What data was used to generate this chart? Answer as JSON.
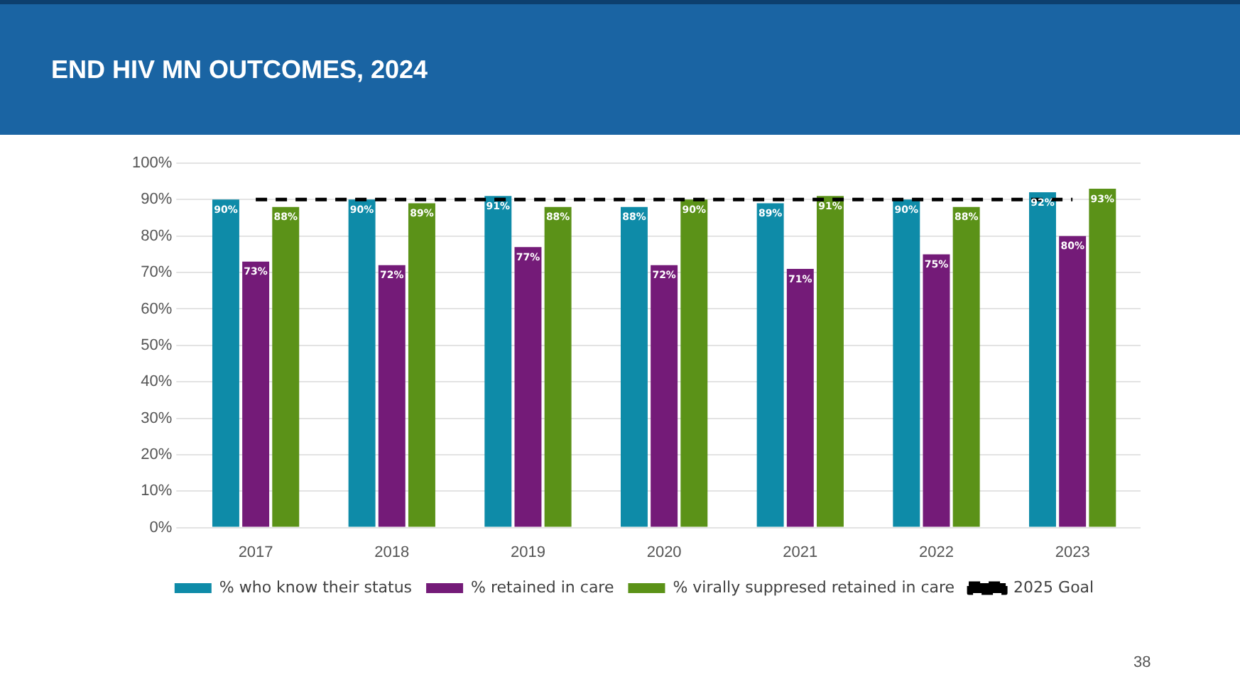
{
  "chart_data": {
    "type": "bar",
    "title": "END HIV MN OUTCOMES, 2024",
    "categories": [
      "2017",
      "2018",
      "2019",
      "2020",
      "2021",
      "2022",
      "2023"
    ],
    "series": [
      {
        "name": "% who know their status",
        "color": "#0e8ba8",
        "values": [
          90,
          90,
          91,
          88,
          89,
          90,
          92
        ],
        "value_labels": [
          "90%",
          "90%",
          "91%",
          "88%",
          "89%",
          "90%",
          "92%"
        ]
      },
      {
        "name": "% retained in care",
        "color": "#741b78",
        "values": [
          73,
          72,
          77,
          72,
          71,
          75,
          80
        ],
        "value_labels": [
          "73%",
          "72%",
          "77%",
          "72%",
          "71%",
          "75%",
          "80%"
        ]
      },
      {
        "name": "% virally suppresed retained in care",
        "color": "#5b9218",
        "values": [
          88,
          89,
          88,
          90,
          91,
          88,
          93
        ],
        "value_labels": [
          "88%",
          "89%",
          "88%",
          "90%",
          "91%",
          "88%",
          "93%"
        ]
      },
      {
        "name": "2025 Goal",
        "type": "line",
        "color": "#000000",
        "line_style": "dashed",
        "marker": "none",
        "values": [
          90,
          90,
          90,
          90,
          90,
          90,
          90
        ]
      }
    ],
    "ylim": [
      0,
      100
    ],
    "yticks": [
      {
        "value": 0,
        "label": "0%"
      },
      {
        "value": 10,
        "label": "10%"
      },
      {
        "value": 20,
        "label": "20%"
      },
      {
        "value": 30,
        "label": "30%"
      },
      {
        "value": 40,
        "label": "40%"
      },
      {
        "value": 50,
        "label": "50%"
      },
      {
        "value": 60,
        "label": "60%"
      },
      {
        "value": 70,
        "label": "70%"
      },
      {
        "value": 80,
        "label": "80%"
      },
      {
        "value": 90,
        "label": "90%"
      },
      {
        "value": 100,
        "label": "100%"
      }
    ],
    "grid": "y",
    "legend": "bottom",
    "annotations": [
      "38"
    ]
  }
}
